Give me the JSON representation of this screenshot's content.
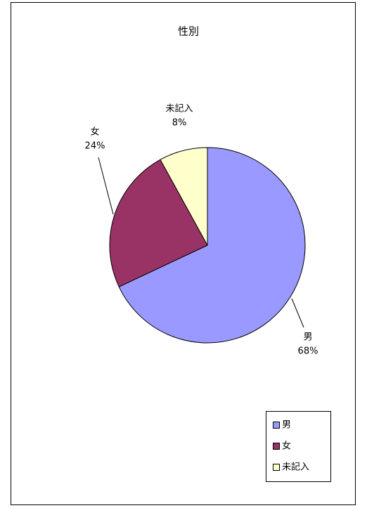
{
  "chart_data": {
    "type": "pie",
    "title": "性別",
    "categories": [
      "男",
      "女",
      "未記入"
    ],
    "values": [
      68,
      24,
      8
    ],
    "value_labels": [
      "68%",
      "24%",
      "8%"
    ],
    "colors": [
      "#9999ff",
      "#993366",
      "#ffffcc"
    ],
    "legend": "bottom-right"
  }
}
